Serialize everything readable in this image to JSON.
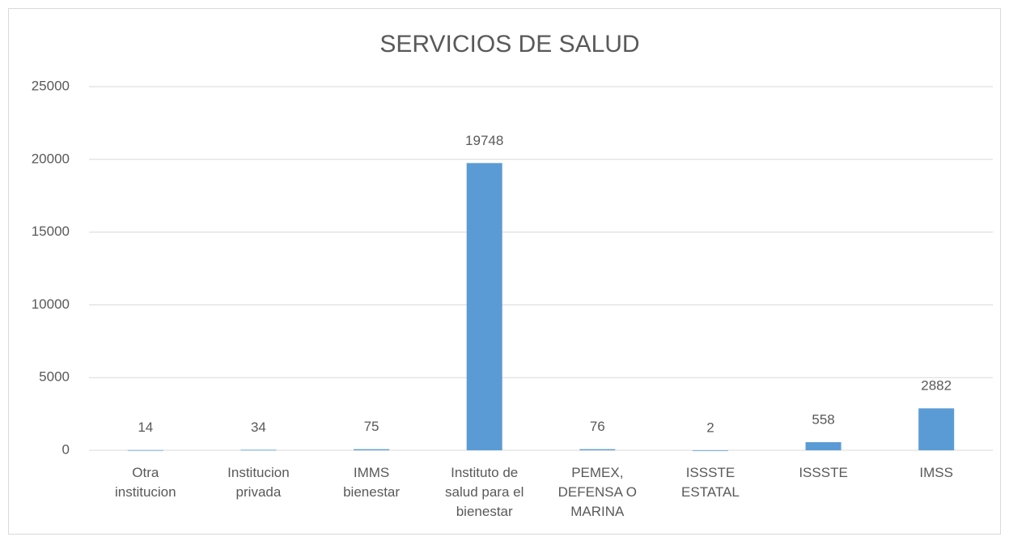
{
  "chart_data": {
    "type": "bar",
    "title": "SERVICIOS DE SALUD",
    "categories": [
      "Otra institucion",
      "Institucion privada",
      "IMMS bienestar",
      "Instituto de salud para el bienestar",
      "PEMEX, DEFENSA O MARINA",
      "ISSSTE ESTATAL",
      "ISSSTE",
      "IMSS"
    ],
    "values": [
      14,
      34,
      75,
      19748,
      76,
      2,
      558,
      2882
    ],
    "color": "#5b9bd5",
    "ylim": [
      0,
      25000
    ],
    "yticks": [
      0,
      5000,
      10000,
      15000,
      20000,
      25000
    ],
    "grid": true
  }
}
